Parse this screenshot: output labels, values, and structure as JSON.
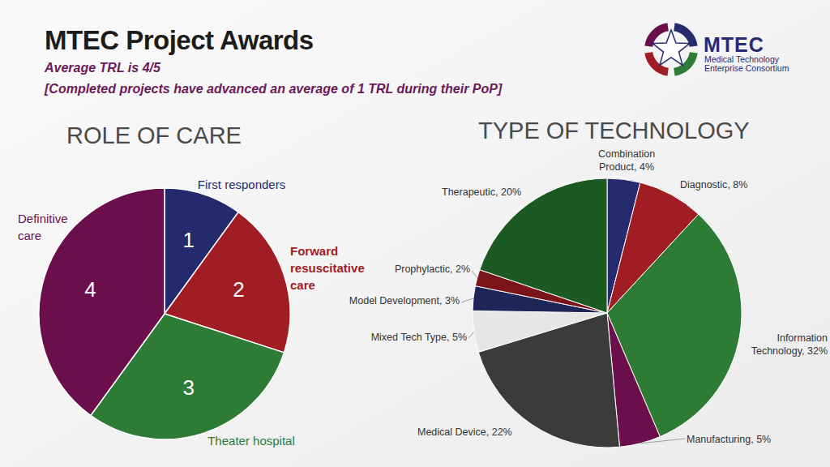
{
  "header": {
    "title": "MTEC Project Awards",
    "subtitle": "Average TRL is 4/5",
    "note": "[Completed projects have advanced an average of 1 TRL during their PoP]"
  },
  "logo": {
    "name": "MTEC",
    "line1": "Medical Technology",
    "line2": "Enterprise Consortium"
  },
  "chart_data": [
    {
      "type": "pie",
      "title": "ROLE OF CARE",
      "categories": [
        "First responders",
        "Forward resuscitative care",
        "Theater hospital",
        "Definitive care"
      ],
      "values": [
        10,
        20,
        30,
        40
      ],
      "slice_labels": [
        "1",
        "2",
        "3",
        "4"
      ],
      "colors": [
        "#232a6e",
        "#a11d24",
        "#2e7b36",
        "#6b0f4c"
      ]
    },
    {
      "type": "pie",
      "title": "TYPE OF TECHNOLOGY",
      "categories": [
        "Combination Product",
        "Diagnostic",
        "Information Technology",
        "Manufacturing",
        "Medical Device",
        "Mixed Tech Type",
        "Model Development",
        "Prophylactic",
        "Therapeutic"
      ],
      "values": [
        4,
        8,
        32,
        5,
        22,
        5,
        3,
        2,
        20
      ],
      "value_labels": [
        "4%",
        "8%",
        "32%",
        "5%",
        "22%",
        "5%",
        "3%",
        "2%",
        "20%"
      ],
      "data_labels": true,
      "colors": [
        "#262b70",
        "#a11d24",
        "#2e7b36",
        "#6b0f4c",
        "#3b3b3b",
        "#e6e6e6",
        "#1d2559",
        "#7a1418",
        "#1c5a24"
      ]
    }
  ]
}
